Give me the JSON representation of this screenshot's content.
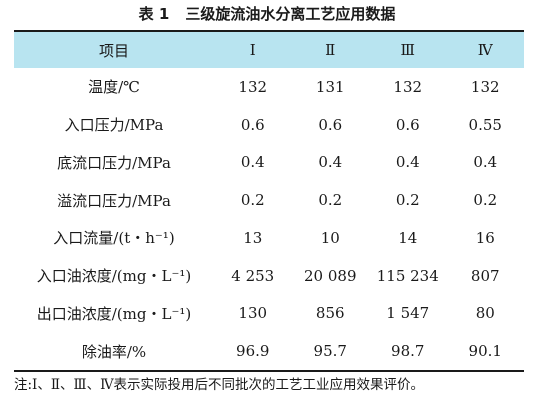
{
  "caption": {
    "number": "表 1",
    "title": "三级旋流油水分离工艺应用数据"
  },
  "table": {
    "headers": [
      "项目",
      "Ⅰ",
      "Ⅱ",
      "Ⅲ",
      "Ⅳ"
    ],
    "rows": [
      [
        "温度/℃",
        "132",
        "131",
        "132",
        "132"
      ],
      [
        "入口压力/MPa",
        "0.6",
        "0.6",
        "0.6",
        "0.55"
      ],
      [
        "底流口压力/MPa",
        "0.4",
        "0.4",
        "0.4",
        "0.4"
      ],
      [
        "溢流口压力/MPa",
        "0.2",
        "0.2",
        "0.2",
        "0.2"
      ],
      [
        "入口流量/(t・h⁻¹)",
        "13",
        "10",
        "14",
        "16"
      ],
      [
        "入口油浓度/(mg・L⁻¹)",
        "4 253",
        "20 089",
        "115 234",
        "807"
      ],
      [
        "出口油浓度/(mg・L⁻¹)",
        "130",
        "856",
        "1 547",
        "80"
      ],
      [
        "除油率/%",
        "96.9",
        "95.7",
        "98.7",
        "90.1"
      ]
    ]
  },
  "note": "注:Ⅰ、Ⅱ、Ⅲ、Ⅳ表示实际投用后不同批次的工艺工业应用效果评价。",
  "colors": {
    "header_background": "#b8e4f0",
    "rule": "#1a1a1a"
  }
}
